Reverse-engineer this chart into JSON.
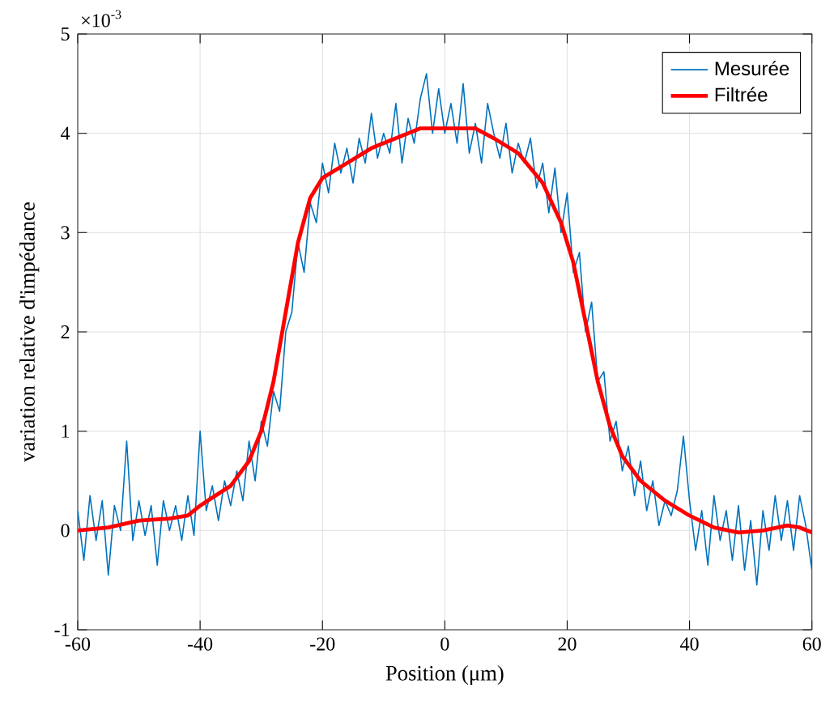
{
  "chart_data": {
    "type": "line",
    "xlabel": "Position (μm)",
    "ylabel": "variation relative d'impédance",
    "annotations": [
      "×10$^{-3}$"
    ],
    "xlim": [
      -60,
      60
    ],
    "xticks": [
      -60,
      -40,
      -20,
      0,
      20,
      40,
      60
    ],
    "ylim": [
      -1,
      5
    ],
    "yticks": [
      -1,
      0,
      1,
      2,
      3,
      4,
      5
    ],
    "grid": true,
    "legend": "top right",
    "series": [
      {
        "name": "Mesurée",
        "color": "#0072bd",
        "x": [
          -60,
          -59,
          -58,
          -57,
          -56,
          -55,
          -54,
          -53,
          -52,
          -51,
          -50,
          -49,
          -48,
          -47,
          -46,
          -45,
          -44,
          -43,
          -42,
          -41,
          -40,
          -39,
          -38,
          -37,
          -36,
          -35,
          -34,
          -33,
          -32,
          -31,
          -30,
          -29,
          -28,
          -27,
          -26,
          -25,
          -24,
          -23,
          -22,
          -21,
          -20,
          -19,
          -18,
          -17,
          -16,
          -15,
          -14,
          -13,
          -12,
          -11,
          -10,
          -9,
          -8,
          -7,
          -6,
          -5,
          -4,
          -3,
          -2,
          -1,
          0,
          1,
          2,
          3,
          4,
          5,
          6,
          7,
          8,
          9,
          10,
          11,
          12,
          13,
          14,
          15,
          16,
          17,
          18,
          19,
          20,
          21,
          22,
          23,
          24,
          25,
          26,
          27,
          28,
          29,
          30,
          31,
          32,
          33,
          34,
          35,
          36,
          37,
          38,
          39,
          40,
          41,
          42,
          43,
          44,
          45,
          46,
          47,
          48,
          49,
          50,
          51,
          52,
          53,
          54,
          55,
          56,
          57,
          58,
          59,
          60
        ],
        "values": [
          0.2,
          -0.3,
          0.35,
          -0.1,
          0.3,
          -0.45,
          0.25,
          0.0,
          0.9,
          -0.1,
          0.3,
          -0.05,
          0.25,
          -0.35,
          0.3,
          0.0,
          0.25,
          -0.1,
          0.35,
          -0.05,
          1.0,
          0.2,
          0.45,
          0.1,
          0.5,
          0.25,
          0.6,
          0.3,
          0.9,
          0.5,
          1.1,
          0.85,
          1.4,
          1.2,
          2.0,
          2.2,
          2.9,
          2.6,
          3.3,
          3.1,
          3.7,
          3.4,
          3.9,
          3.6,
          3.85,
          3.5,
          3.95,
          3.7,
          4.2,
          3.75,
          4.0,
          3.8,
          4.3,
          3.7,
          4.15,
          3.9,
          4.35,
          4.6,
          4.0,
          4.45,
          4.0,
          4.3,
          3.9,
          4.5,
          3.8,
          4.1,
          3.7,
          4.3,
          4.0,
          3.75,
          4.1,
          3.6,
          3.9,
          3.7,
          3.95,
          3.45,
          3.7,
          3.2,
          3.65,
          3.0,
          3.4,
          2.6,
          2.8,
          2.0,
          2.3,
          1.5,
          1.6,
          0.9,
          1.1,
          0.6,
          0.85,
          0.35,
          0.7,
          0.2,
          0.5,
          0.05,
          0.3,
          0.15,
          0.4,
          0.95,
          0.3,
          -0.2,
          0.2,
          -0.35,
          0.35,
          -0.1,
          0.2,
          -0.3,
          0.25,
          -0.4,
          0.1,
          -0.55,
          0.2,
          -0.2,
          0.35,
          -0.1,
          0.3,
          -0.2,
          0.35,
          0.05,
          -0.4
        ]
      },
      {
        "name": "Filtrée",
        "color": "#ff0000",
        "x": [
          -60,
          -55,
          -50,
          -45,
          -42,
          -40,
          -35,
          -32,
          -30,
          -28,
          -26,
          -24,
          -22,
          -20,
          -16,
          -12,
          -8,
          -4,
          0,
          5,
          8,
          12,
          16,
          19,
          21,
          23,
          25,
          27,
          29,
          32,
          36,
          40,
          44,
          48,
          52,
          56,
          58,
          60
        ],
        "values": [
          0,
          0.03,
          0.1,
          0.12,
          0.15,
          0.25,
          0.45,
          0.7,
          1.0,
          1.5,
          2.2,
          2.9,
          3.35,
          3.55,
          3.7,
          3.85,
          3.95,
          4.05,
          4.05,
          4.05,
          3.95,
          3.8,
          3.5,
          3.1,
          2.7,
          2.1,
          1.5,
          1.05,
          0.75,
          0.5,
          0.3,
          0.15,
          0.03,
          -0.02,
          0.0,
          0.05,
          0.03,
          -0.02
        ]
      }
    ]
  }
}
